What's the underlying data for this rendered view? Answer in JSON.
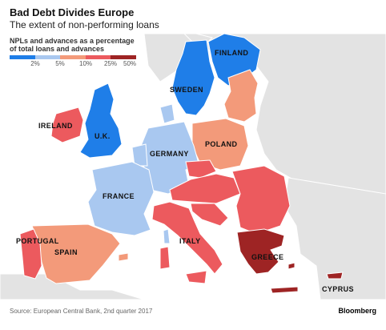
{
  "header": {
    "title": "Bad Debt Divides Europe",
    "subtitle": "The extent of non-performing loans"
  },
  "legend": {
    "title_line1": "NPLs and advances as a percentage",
    "title_line2": "of total loans and advances",
    "ticks": [
      "2%",
      "5%",
      "10%",
      "25%",
      "50%"
    ],
    "colors": [
      "#1f7ee8",
      "#a9c8f0",
      "#f39a7a",
      "#ec5a5e",
      "#9e2424"
    ]
  },
  "countries": [
    {
      "name": "FINLAND",
      "band": "2%",
      "color": "#1f7ee8"
    },
    {
      "name": "SWEDEN",
      "band": "2%",
      "color": "#1f7ee8"
    },
    {
      "name": "IRELAND",
      "band": "10-25%",
      "color": "#ec5a5e"
    },
    {
      "name": "U.K.",
      "band": "2%",
      "color": "#1f7ee8"
    },
    {
      "name": "POLAND",
      "band": "5-10%",
      "color": "#f39a7a"
    },
    {
      "name": "GERMANY",
      "band": "2-5%",
      "color": "#a9c8f0"
    },
    {
      "name": "FRANCE",
      "band": "2-5%",
      "color": "#a9c8f0"
    },
    {
      "name": "PORTUGAL",
      "band": "10-25%",
      "color": "#ec5a5e"
    },
    {
      "name": "SPAIN",
      "band": "5-10%",
      "color": "#f39a7a"
    },
    {
      "name": "ITALY",
      "band": "10-25%",
      "color": "#ec5a5e"
    },
    {
      "name": "GREECE",
      "band": "25-50%",
      "color": "#9e2424"
    },
    {
      "name": "CYPRUS",
      "band": "25-50%",
      "color": "#9e2424"
    }
  ],
  "colors": {
    "land_other": "#e3e3e3",
    "sea": "#ffffff",
    "border": "#ffffff"
  },
  "footer": {
    "source": "Source: European Central Bank, 2nd quarter 2017",
    "brand": "Bloomberg"
  }
}
